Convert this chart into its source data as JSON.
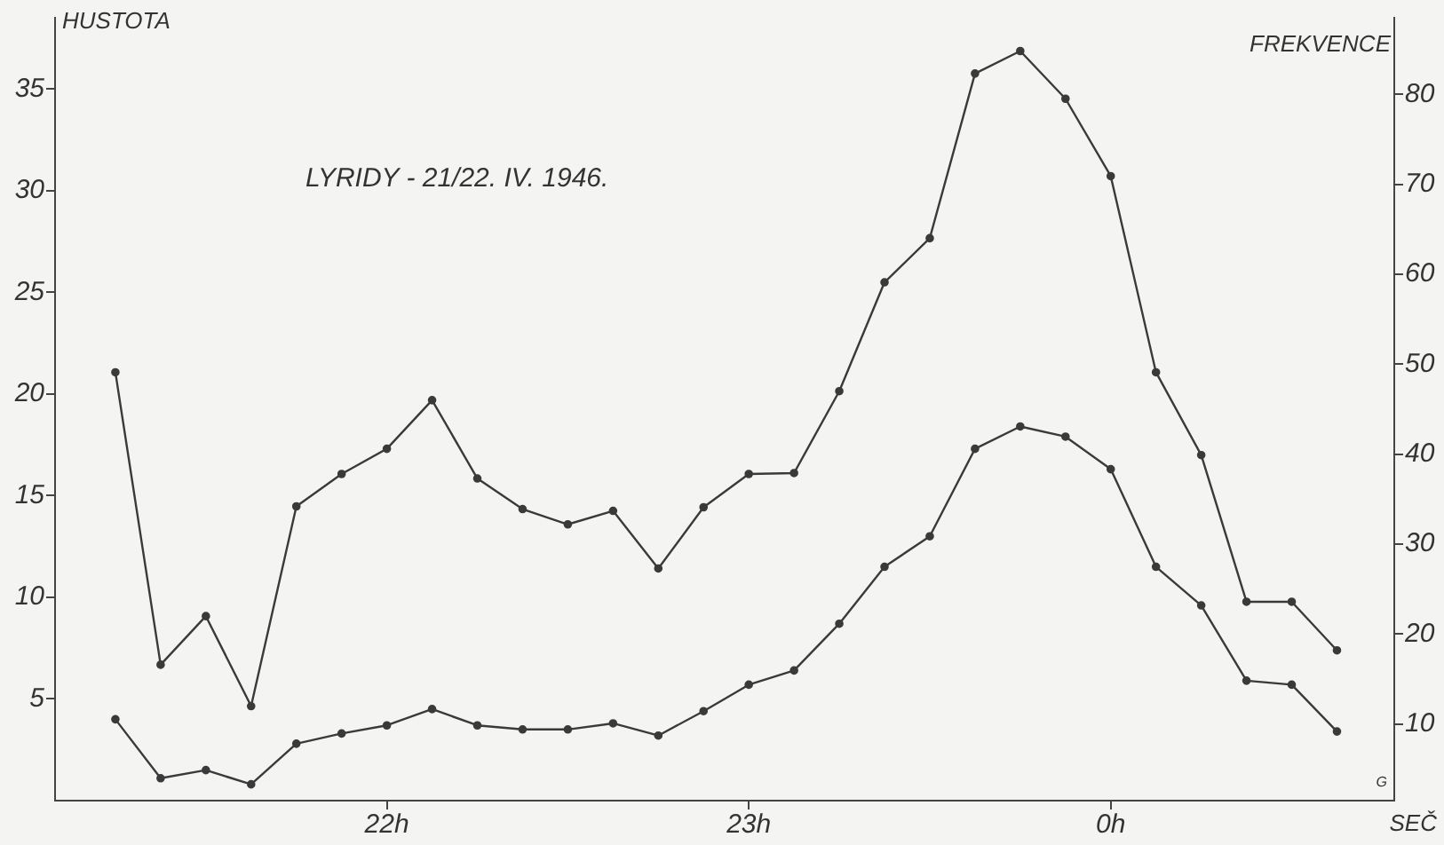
{
  "chart_data": {
    "type": "line",
    "title": "LYRIDY - 21/22. IV. 1946.",
    "ylabel": "HUSTOTA",
    "y2label": "FREKVENCE",
    "xlabel": "SEČ",
    "annotations": [
      "G"
    ],
    "x": [
      "1946-04-21T21:15",
      "1946-04-21T21:22:30",
      "1946-04-21T21:30",
      "1946-04-21T21:37:30",
      "1946-04-21T21:45",
      "1946-04-21T21:52:30",
      "1946-04-21T22:00",
      "1946-04-21T22:07:30",
      "1946-04-21T22:15",
      "1946-04-21T22:22:30",
      "1946-04-21T22:30",
      "1946-04-21T22:37:30",
      "1946-04-21T22:45",
      "1946-04-21T22:52:30",
      "1946-04-21T23:00",
      "1946-04-21T23:07:30",
      "1946-04-21T23:15",
      "1946-04-21T23:22:30",
      "1946-04-21T23:30",
      "1946-04-21T23:37:30",
      "1946-04-21T23:45",
      "1946-04-21T23:52:30",
      "1946-04-22T00:00",
      "1946-04-22T00:07:30",
      "1946-04-22T00:15",
      "1946-04-22T00:22:30",
      "1946-04-22T00:30",
      "1946-04-22T00:37:30"
    ],
    "series": [
      {
        "color": "#3a3a3a",
        "axis": "y2",
        "values": [
          49.1,
          16.6,
          22.0,
          12.0,
          34.2,
          37.8,
          40.6,
          46.0,
          37.3,
          33.9,
          32.2,
          33.7,
          27.3,
          34.1,
          37.8,
          37.9,
          47.0,
          59.1,
          64.0,
          82.3,
          84.8,
          79.5,
          70.9,
          49.1,
          39.9,
          23.6,
          23.6,
          18.2
        ]
      },
      {
        "color": "#3a3a3a",
        "axis": "y",
        "values": [
          4.0,
          1.1,
          1.5,
          0.8,
          2.8,
          3.3,
          3.7,
          4.5,
          3.7,
          3.5,
          3.5,
          3.8,
          3.2,
          4.4,
          5.7,
          6.4,
          8.7,
          11.5,
          13.0,
          17.3,
          18.4,
          17.9,
          16.3,
          11.5,
          9.6,
          5.9,
          5.7,
          3.4
        ]
      }
    ],
    "xlim": [
      "1946-04-21T21:05",
      "1946-04-22T00:47"
    ],
    "xticks": [
      {
        "value": "1946-04-21T22:00",
        "label": "22h"
      },
      {
        "value": "1946-04-21T23:00",
        "label": "23h"
      },
      {
        "value": "1946-04-22T00:00",
        "label": "0h"
      }
    ],
    "ylim": [
      0,
      38.5
    ],
    "yticks": [
      5,
      10,
      15,
      20,
      25,
      30,
      35
    ],
    "y2lim": [
      1.5,
      88.5
    ],
    "y2ticks": [
      10,
      20,
      30,
      40,
      50,
      60,
      70,
      80
    ],
    "grid": false,
    "legend": false,
    "marker": "circle",
    "line_style": "solid"
  }
}
